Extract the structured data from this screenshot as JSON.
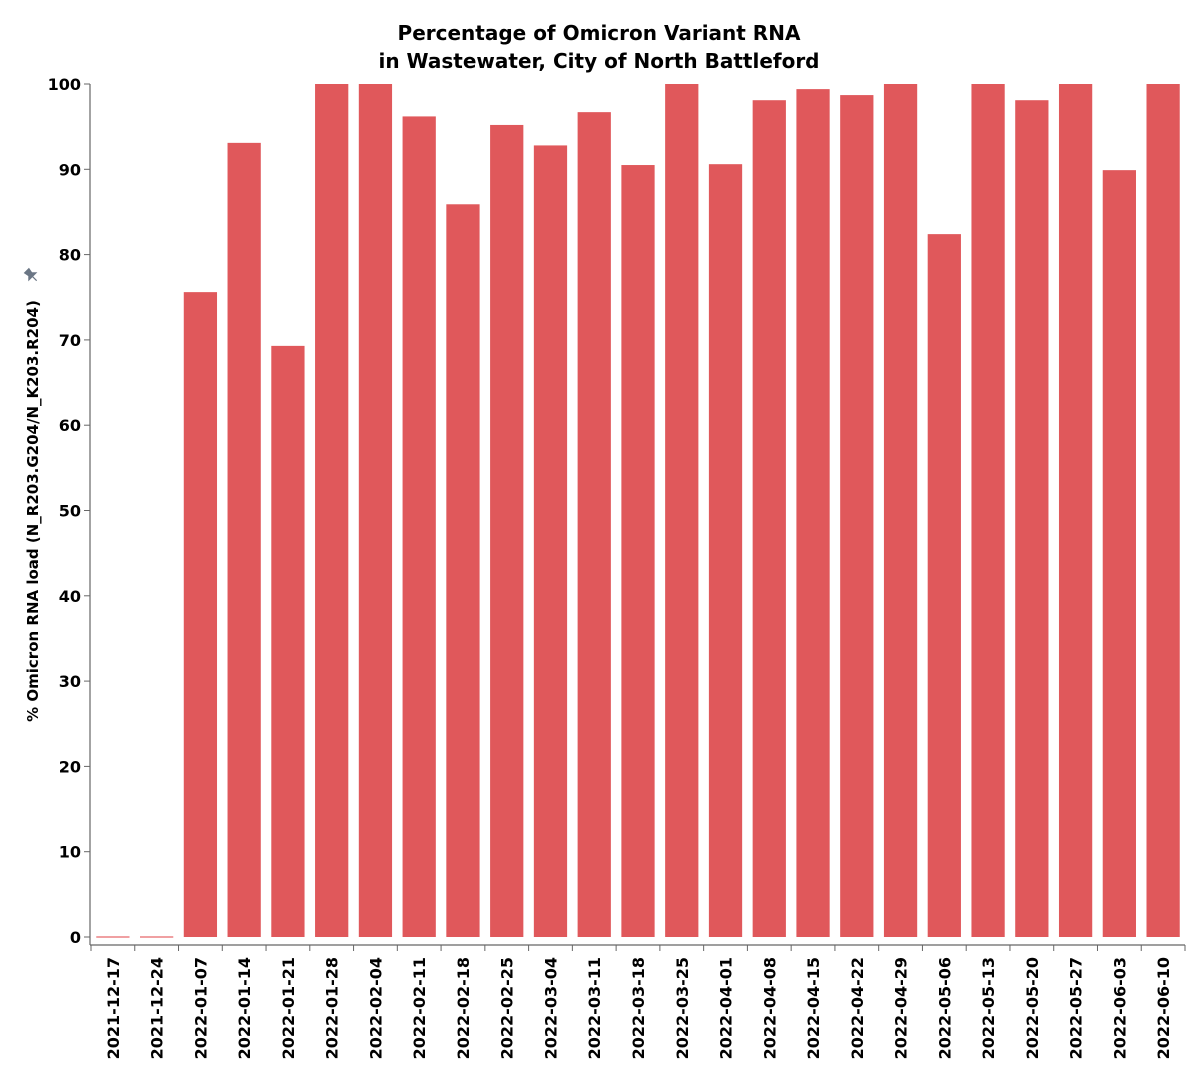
{
  "chart_data": {
    "type": "bar",
    "title": [
      "Percentage of Omicron Variant RNA",
      "in Wastewater, City of North Battleford"
    ],
    "xlabel": "",
    "ylabel": "% Omicron RNA load (N_R203.G204/N_K203.R204)",
    "ylabel_icon": "pin-icon",
    "ylim": [
      0,
      100
    ],
    "yticks": [
      0,
      10,
      20,
      30,
      40,
      50,
      60,
      70,
      80,
      90,
      100
    ],
    "grid": false,
    "bar_color": "#e0585b",
    "zero_bar_color": "#f0a0a2",
    "categories": [
      "2021-12-17",
      "2021-12-24",
      "2022-01-07",
      "2022-01-14",
      "2022-01-21",
      "2022-01-28",
      "2022-02-04",
      "2022-02-11",
      "2022-02-18",
      "2022-02-25",
      "2022-03-04",
      "2022-03-11",
      "2022-03-18",
      "2022-03-25",
      "2022-04-01",
      "2022-04-08",
      "2022-04-15",
      "2022-04-22",
      "2022-04-29",
      "2022-05-06",
      "2022-05-13",
      "2022-05-20",
      "2022-05-27",
      "2022-06-03",
      "2022-06-10"
    ],
    "values": [
      0,
      0,
      75.6,
      93.1,
      69.3,
      100,
      100,
      96.2,
      85.9,
      95.2,
      92.8,
      96.7,
      90.5,
      100,
      90.6,
      98.1,
      99.4,
      98.7,
      100,
      82.4,
      100,
      98.1,
      100,
      89.9,
      100
    ]
  }
}
